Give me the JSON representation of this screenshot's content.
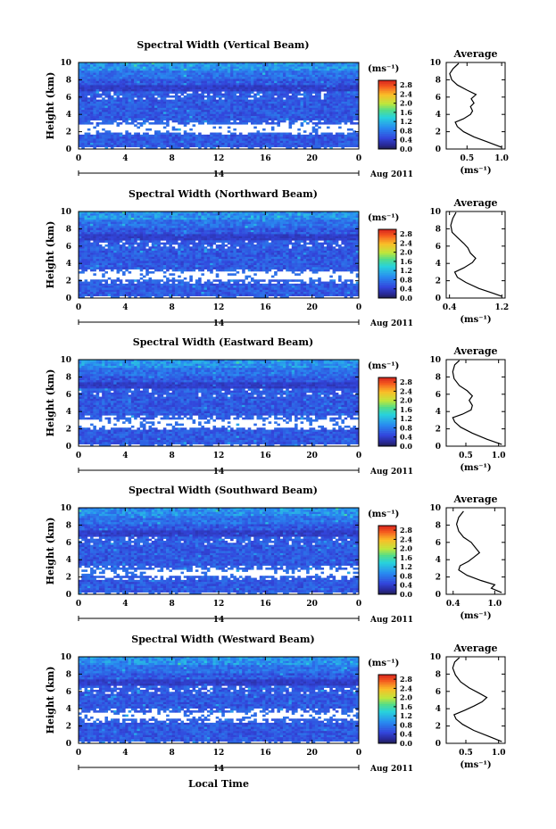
{
  "chart_data": [
    {
      "type": "heatmap",
      "title": "Spectral Width (Vertical Beam)",
      "ylabel": "Height (km)",
      "x_ticks": [
        "0",
        "4",
        "8",
        "12",
        "16",
        "20",
        "0"
      ],
      "y_ticks": [
        "0",
        "2",
        "4",
        "6",
        "8",
        "10"
      ],
      "xlim": [
        0,
        24
      ],
      "ylim": [
        0,
        10
      ],
      "day_label": "14",
      "date_label": "Aug 2011",
      "colorbar": {
        "unit": "(ms⁻¹)",
        "ticks": [
          "0.0",
          "0.4",
          "0.8",
          "1.2",
          "1.6",
          "2.0",
          "2.4",
          "2.8"
        ],
        "range": [
          0,
          3.0
        ]
      },
      "profile": {
        "title": "Average",
        "xlabel": "(ms⁻¹)",
        "x_ticks": [
          "0.5",
          "1.0"
        ],
        "xlim": [
          0.2,
          1.05
        ],
        "y_ticks": [
          "0",
          "2",
          "4",
          "6",
          "8",
          "10"
        ],
        "points": [
          [
            1.0,
            0.2
          ],
          [
            0.8,
            0.8
          ],
          [
            0.6,
            1.4
          ],
          [
            0.45,
            2.0
          ],
          [
            0.36,
            2.6
          ],
          [
            0.33,
            3.1
          ],
          [
            0.45,
            3.5
          ],
          [
            0.55,
            4.0
          ],
          [
            0.58,
            4.4
          ],
          [
            0.55,
            4.9
          ],
          [
            0.6,
            5.3
          ],
          [
            0.56,
            5.8
          ],
          [
            0.63,
            6.3
          ],
          [
            0.5,
            6.8
          ],
          [
            0.36,
            7.4
          ],
          [
            0.28,
            8.0
          ],
          [
            0.25,
            8.7
          ],
          [
            0.3,
            9.3
          ],
          [
            0.38,
            9.9
          ]
        ]
      }
    },
    {
      "type": "heatmap",
      "title": "Spectral Width (Northward Beam)",
      "ylabel": "Height (km)",
      "x_ticks": [
        "0",
        "4",
        "8",
        "12",
        "16",
        "20",
        "0"
      ],
      "y_ticks": [
        "0",
        "2",
        "4",
        "6",
        "8",
        "10"
      ],
      "xlim": [
        0,
        24
      ],
      "ylim": [
        0,
        10
      ],
      "day_label": "14",
      "date_label": "Aug 2011",
      "colorbar": {
        "unit": "(ms⁻¹)",
        "ticks": [
          "0.0",
          "0.4",
          "0.8",
          "1.2",
          "1.6",
          "2.0",
          "2.4",
          "2.8"
        ],
        "range": [
          0,
          3.0
        ]
      },
      "profile": {
        "title": "Average",
        "xlabel": "(ms⁻¹)",
        "x_ticks": [
          "0.4",
          "1.2"
        ],
        "xlim": [
          0.35,
          1.25
        ],
        "y_ticks": [
          "0",
          "2",
          "4",
          "6",
          "8",
          "10"
        ],
        "points": [
          [
            1.2,
            0.2
          ],
          [
            1.05,
            0.6
          ],
          [
            0.85,
            1.1
          ],
          [
            0.65,
            1.8
          ],
          [
            0.52,
            2.4
          ],
          [
            0.48,
            3.0
          ],
          [
            0.62,
            3.5
          ],
          [
            0.75,
            4.1
          ],
          [
            0.8,
            4.6
          ],
          [
            0.72,
            5.2
          ],
          [
            0.68,
            5.8
          ],
          [
            0.62,
            6.3
          ],
          [
            0.52,
            7.0
          ],
          [
            0.44,
            7.6
          ],
          [
            0.42,
            8.4
          ],
          [
            0.45,
            9.2
          ],
          [
            0.5,
            9.9
          ]
        ]
      }
    },
    {
      "type": "heatmap",
      "title": "Spectral Width (Eastward Beam)",
      "ylabel": "Height (km)",
      "x_ticks": [
        "0",
        "4",
        "8",
        "12",
        "16",
        "20",
        "0"
      ],
      "y_ticks": [
        "0",
        "2",
        "4",
        "6",
        "8",
        "10"
      ],
      "xlim": [
        0,
        24
      ],
      "ylim": [
        0,
        10
      ],
      "day_label": "14",
      "date_label": "Aug 2011",
      "colorbar": {
        "unit": "(ms⁻¹)",
        "ticks": [
          "0.0",
          "0.4",
          "0.8",
          "1.2",
          "1.6",
          "2.0",
          "2.4",
          "2.8"
        ],
        "range": [
          0,
          3.0
        ]
      },
      "profile": {
        "title": "Average",
        "xlabel": "(ms⁻¹)",
        "x_ticks": [
          "0.5",
          "1.0"
        ],
        "xlim": [
          0.2,
          1.1
        ],
        "y_ticks": [
          "0",
          "2",
          "4",
          "6",
          "8",
          "10"
        ],
        "points": [
          [
            1.05,
            0.2
          ],
          [
            0.82,
            0.8
          ],
          [
            0.6,
            1.5
          ],
          [
            0.42,
            2.2
          ],
          [
            0.33,
            2.8
          ],
          [
            0.3,
            3.3
          ],
          [
            0.45,
            3.7
          ],
          [
            0.58,
            4.2
          ],
          [
            0.6,
            4.7
          ],
          [
            0.55,
            5.3
          ],
          [
            0.6,
            5.8
          ],
          [
            0.52,
            6.4
          ],
          [
            0.4,
            7.0
          ],
          [
            0.32,
            7.8
          ],
          [
            0.3,
            8.6
          ],
          [
            0.33,
            9.4
          ],
          [
            0.4,
            9.9
          ]
        ]
      }
    },
    {
      "type": "heatmap",
      "title": "Spectral Width (Southward Beam)",
      "ylabel": "Height (km)",
      "x_ticks": [
        "0",
        "4",
        "8",
        "12",
        "16",
        "20",
        "0"
      ],
      "y_ticks": [
        "0",
        "2",
        "4",
        "6",
        "8",
        "10"
      ],
      "xlim": [
        0,
        24
      ],
      "ylim": [
        0,
        10
      ],
      "day_label": "14",
      "date_label": "Aug 2011",
      "colorbar": {
        "unit": "(ms⁻¹)",
        "ticks": [
          "0.0",
          "0.4",
          "0.8",
          "1.2",
          "1.6",
          "2.0",
          "2.4",
          "2.8"
        ],
        "range": [
          0,
          3.0
        ]
      },
      "profile": {
        "title": "Average",
        "xlabel": "(ms⁻¹)",
        "x_ticks": [
          "0.4",
          "1.0"
        ],
        "xlim": [
          0.3,
          1.15
        ],
        "y_ticks": [
          "0",
          "2",
          "4",
          "6",
          "8",
          "10"
        ],
        "points": [
          [
            1.1,
            0.2
          ],
          [
            0.95,
            0.7
          ],
          [
            1.0,
            1.1
          ],
          [
            0.8,
            1.6
          ],
          [
            0.6,
            2.2
          ],
          [
            0.48,
            2.8
          ],
          [
            0.5,
            3.3
          ],
          [
            0.62,
            3.8
          ],
          [
            0.7,
            4.3
          ],
          [
            0.78,
            4.8
          ],
          [
            0.72,
            5.4
          ],
          [
            0.66,
            6.0
          ],
          [
            0.55,
            6.6
          ],
          [
            0.48,
            7.3
          ],
          [
            0.45,
            8.1
          ],
          [
            0.48,
            8.9
          ],
          [
            0.55,
            9.6
          ]
        ]
      }
    },
    {
      "type": "heatmap",
      "title": "Spectral Width (Westward Beam)",
      "ylabel": "Height (km)",
      "xlabel": "Local Time",
      "x_ticks": [
        "0",
        "4",
        "8",
        "12",
        "16",
        "20",
        "0"
      ],
      "y_ticks": [
        "0",
        "2",
        "4",
        "6",
        "8",
        "10"
      ],
      "xlim": [
        0,
        24
      ],
      "ylim": [
        0,
        10
      ],
      "day_label": "14",
      "date_label": "Aug 2011",
      "colorbar": {
        "unit": "(ms⁻¹)",
        "ticks": [
          "0.0",
          "0.4",
          "0.8",
          "1.2",
          "1.6",
          "2.0",
          "2.4",
          "2.8"
        ],
        "range": [
          0,
          3.0
        ]
      },
      "profile": {
        "title": "Average",
        "xlabel": "(ms⁻¹)",
        "x_ticks": [
          "0.5",
          "1.0"
        ],
        "xlim": [
          0.2,
          1.1
        ],
        "y_ticks": [
          "0",
          "2",
          "4",
          "6",
          "8",
          "10"
        ],
        "points": [
          [
            1.05,
            0.2
          ],
          [
            0.85,
            0.8
          ],
          [
            0.62,
            1.5
          ],
          [
            0.45,
            2.2
          ],
          [
            0.35,
            2.8
          ],
          [
            0.32,
            3.3
          ],
          [
            0.48,
            3.8
          ],
          [
            0.62,
            4.3
          ],
          [
            0.75,
            4.8
          ],
          [
            0.82,
            5.3
          ],
          [
            0.7,
            5.8
          ],
          [
            0.55,
            6.4
          ],
          [
            0.42,
            7.1
          ],
          [
            0.34,
            7.9
          ],
          [
            0.3,
            8.7
          ],
          [
            0.33,
            9.4
          ],
          [
            0.4,
            9.9
          ]
        ]
      }
    }
  ]
}
